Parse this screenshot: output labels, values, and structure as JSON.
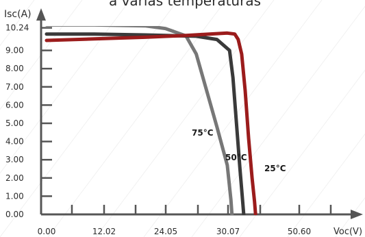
{
  "chart_data": {
    "type": "line",
    "title": "a varias temperaturas",
    "ylabel": "Isc(A)",
    "xlabel": "Voc(V)",
    "y_ticks": [
      "0.00",
      "1.00",
      "2.00",
      "3.00",
      "4.00",
      "5.00",
      "6.00",
      "7.00",
      "8.00",
      "9.00",
      "10.24"
    ],
    "x_ticks": [
      "0.00",
      "12.02",
      "24.05",
      "30.07",
      "50.60"
    ],
    "ylim": [
      0,
      11
    ],
    "grid": false,
    "series": [
      {
        "name": "75°C",
        "color": "#777777",
        "points": [
          [
            0,
            10.4
          ],
          [
            10,
            10.4
          ],
          [
            20,
            10.35
          ],
          [
            24,
            10.2
          ],
          [
            26,
            9.8
          ],
          [
            27,
            8.8
          ],
          [
            28,
            6.8
          ],
          [
            29,
            4.8
          ],
          [
            30,
            2.7
          ],
          [
            30.9,
            0.8
          ],
          [
            31.2,
            0
          ]
        ]
      },
      {
        "name": "50°C",
        "color": "#3a3a3a",
        "points": [
          [
            0,
            9.9
          ],
          [
            10,
            9.9
          ],
          [
            20,
            9.85
          ],
          [
            24,
            9.82
          ],
          [
            27,
            9.78
          ],
          [
            29,
            9.6
          ],
          [
            30.5,
            9.0
          ],
          [
            31.5,
            7.5
          ],
          [
            32.5,
            5.0
          ],
          [
            33.5,
            2.5
          ],
          [
            34.3,
            0.7
          ],
          [
            34.6,
            0
          ]
        ]
      },
      {
        "name": "25°C",
        "color": "#9b1c1c",
        "points": [
          [
            0,
            9.55
          ],
          [
            10,
            9.63
          ],
          [
            20,
            9.72
          ],
          [
            26,
            9.82
          ],
          [
            30,
            9.95
          ],
          [
            32,
            9.9
          ],
          [
            33,
            9.6
          ],
          [
            34,
            8.8
          ],
          [
            35,
            6.8
          ],
          [
            36,
            4.2
          ],
          [
            37,
            2.0
          ],
          [
            37.7,
            0.7
          ],
          [
            38,
            0
          ]
        ]
      }
    ],
    "annotations": [
      "75°C",
      "50°C",
      "25°C"
    ]
  }
}
